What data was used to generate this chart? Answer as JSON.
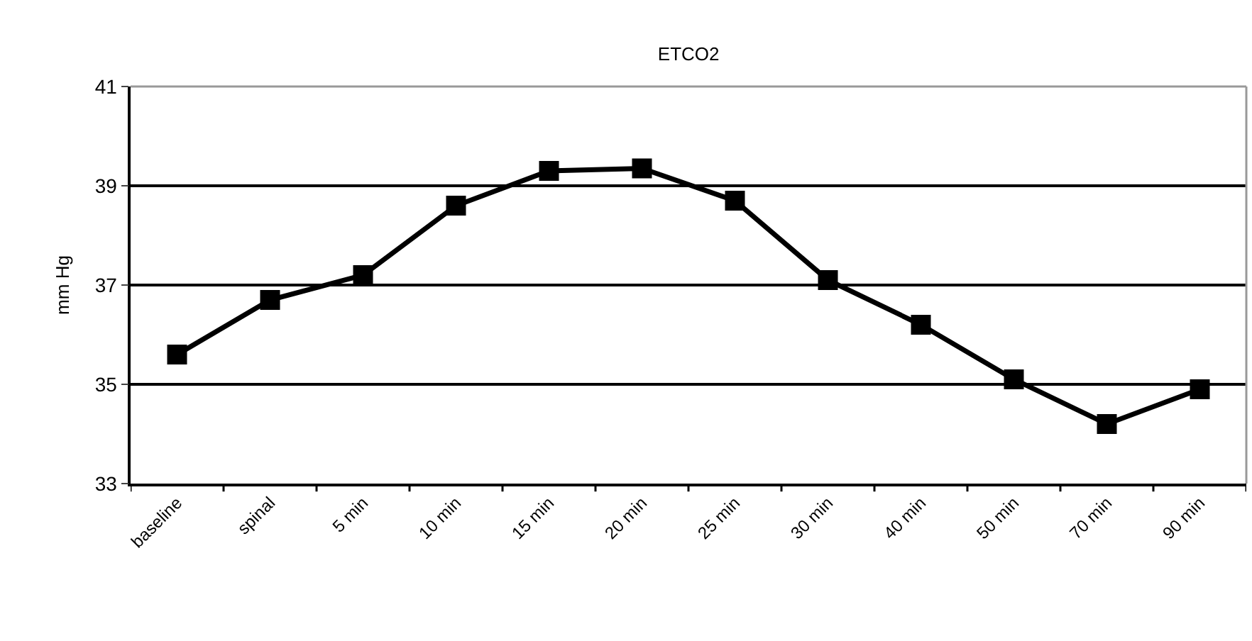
{
  "chart_data": {
    "type": "line",
    "title": "ETCO2",
    "ylabel": "mm Hg",
    "categories": [
      "baseline",
      "spinal",
      "5 min",
      "10 min",
      "15 min",
      "20 min",
      "25 min",
      "30 min",
      "40 min",
      "50 min",
      "70 min",
      "90 min"
    ],
    "series": [
      {
        "color": "#000000",
        "values": [
          35.6,
          36.7,
          37.2,
          38.6,
          39.3,
          39.35,
          38.7,
          37.1,
          36.2,
          35.1,
          34.2,
          34.9
        ]
      }
    ],
    "ylim": [
      33,
      41
    ],
    "yticks": [
      33,
      35,
      37,
      39,
      41
    ],
    "grid": "y",
    "legend": false,
    "marker": "square",
    "line_style": "solid"
  }
}
